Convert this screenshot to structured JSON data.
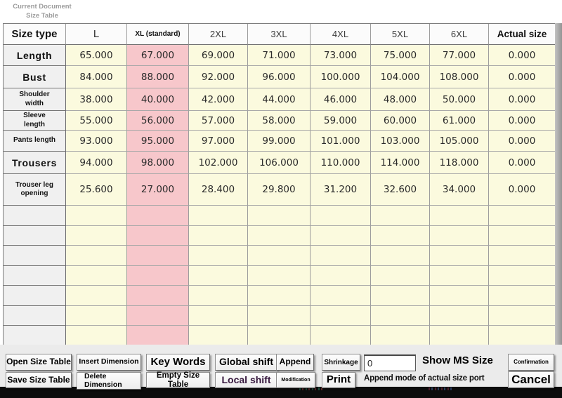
{
  "window": {
    "title_line1": "Current Document",
    "title_line2": "Size Table"
  },
  "table": {
    "columns": [
      "Size type",
      "L",
      "XL (standard)",
      "2XL",
      "3XL",
      "4XL",
      "5XL",
      "6XL",
      "Actual size"
    ],
    "highlight_column": "XL (standard)",
    "highlight_value_index": 1,
    "rows": [
      {
        "label": "Length",
        "values": [
          "65.000",
          "67.000",
          "69.000",
          "71.000",
          "73.000",
          "75.000",
          "77.000",
          "0.000"
        ]
      },
      {
        "label": "Bust",
        "values": [
          "84.000",
          "88.000",
          "92.000",
          "96.000",
          "100.000",
          "104.000",
          "108.000",
          "0.000"
        ]
      },
      {
        "label": "Shoulder width",
        "values": [
          "38.000",
          "40.000",
          "42.000",
          "44.000",
          "46.000",
          "48.000",
          "50.000",
          "0.000"
        ]
      },
      {
        "label": "Sleeve length",
        "values": [
          "55.000",
          "56.000",
          "57.000",
          "58.000",
          "59.000",
          "60.000",
          "61.000",
          "0.000"
        ]
      },
      {
        "label": "Pants length",
        "values": [
          "93.000",
          "95.000",
          "97.000",
          "99.000",
          "101.000",
          "103.000",
          "105.000",
          "0.000"
        ]
      },
      {
        "label": "Trousers",
        "values": [
          "94.000",
          "98.000",
          "102.000",
          "106.000",
          "110.000",
          "114.000",
          "118.000",
          "0.000"
        ]
      },
      {
        "label": "Trouser leg opening",
        "values": [
          "25.600",
          "27.000",
          "28.400",
          "29.800",
          "31.200",
          "32.600",
          "34.000",
          "0.000"
        ]
      }
    ],
    "empty_row_count": 7
  },
  "buttons": {
    "open_size_table": "Open Size Table",
    "save_size_table": "Save Size Table",
    "insert_dimension": "Insert Dimension",
    "delete_dimension": "Delete Dimension",
    "key_words": "Key Words",
    "empty_size_table": "Empty Size Table",
    "global_shift": "Global shift",
    "local_shift": "Local shift",
    "append": "Append",
    "modification": "Modification",
    "shrinkage": "Shrinkage",
    "print": "Print",
    "confirmation": "Confirmation",
    "cancel": "Cancel"
  },
  "controls": {
    "shrinkage_input": {
      "value": "0"
    }
  },
  "labels": {
    "show_ms_size": "Show MS Size",
    "append_mode": "Append mode of actual size port"
  },
  "colors": {
    "cell_yellow": "#fbfade",
    "cell_pink": "#f7c7cb",
    "label_gray": "#f0f0f0",
    "local_shift_text": "#35163c",
    "black_bar": "#0c0c0c"
  }
}
